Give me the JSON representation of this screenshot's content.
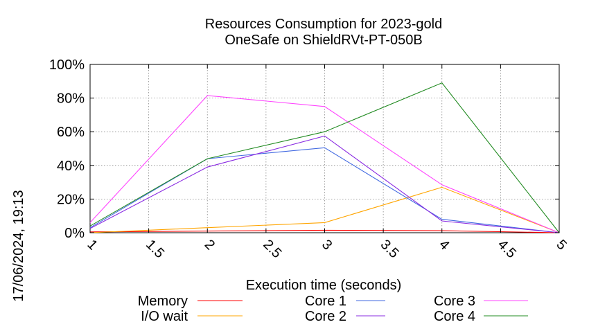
{
  "chart_data": {
    "type": "line",
    "title": "Resources Consumption for 2023-gold",
    "subtitle": "OneSafe on ShieldRVt-PT-050B",
    "xlabel": "Execution time (seconds)",
    "ylabel": "",
    "xlim": [
      1,
      5
    ],
    "ylim": [
      0,
      100
    ],
    "x_ticks": [
      "1",
      "1.5",
      "2",
      "2.5",
      "3",
      "3.5",
      "4",
      "4.5",
      "5"
    ],
    "y_ticks": [
      "0%",
      "20%",
      "40%",
      "60%",
      "80%",
      "100%"
    ],
    "grid": true,
    "legend_placement": "bottom",
    "x": [
      1,
      2,
      3,
      4,
      5
    ],
    "series": [
      {
        "name": "Memory",
        "color": "#ff0000",
        "values": [
          0.5,
          1,
          1.5,
          1.2,
          0
        ]
      },
      {
        "name": "I/O wait",
        "color": "#ffa500",
        "values": [
          0,
          3,
          6,
          27,
          0
        ]
      },
      {
        "name": "Core 1",
        "color": "#4169e1",
        "values": [
          3,
          44,
          50.5,
          8,
          0
        ]
      },
      {
        "name": "Core 2",
        "color": "#8a2be2",
        "values": [
          2.5,
          39,
          57.5,
          7,
          0
        ]
      },
      {
        "name": "Core 3",
        "color": "#ff44ff",
        "values": [
          6,
          81.5,
          75,
          28.5,
          0
        ]
      },
      {
        "name": "Core 4",
        "color": "#228b22",
        "values": [
          4,
          44,
          60,
          89,
          0
        ]
      }
    ]
  },
  "timestamp": "17/06/2024, 19:13"
}
